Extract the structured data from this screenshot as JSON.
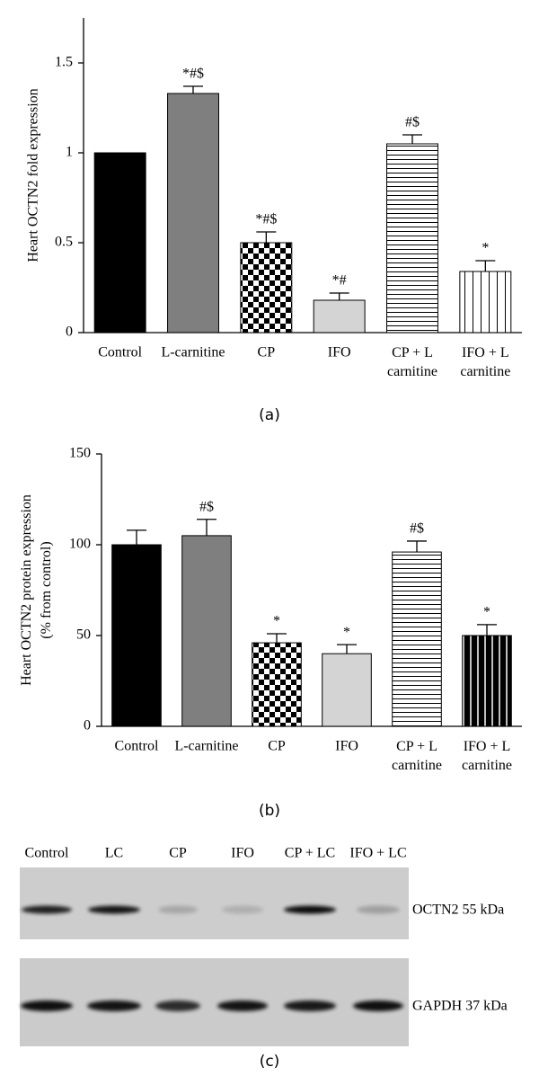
{
  "chart_data": [
    {
      "type": "bar",
      "ylabel": "Heart OCTN2 fold expression",
      "categories": [
        "Control",
        "L-carnitine",
        "CP",
        "IFO",
        "CP + L\ncarnitine",
        "IFO + L\ncarnitine"
      ],
      "values": [
        1.0,
        1.33,
        0.5,
        0.18,
        1.05,
        0.34
      ],
      "errors": [
        null,
        0.04,
        0.06,
        0.04,
        0.05,
        0.06
      ],
      "annotations": [
        null,
        "*#$",
        "*#$",
        "*#",
        "#$",
        "*"
      ],
      "fills": [
        "#000000",
        "#7f7f7f",
        "checker",
        "#d4d4d4",
        "hlines",
        "vlines"
      ],
      "ylim": [
        0,
        1.75
      ],
      "yticks": [
        0,
        0.5,
        1,
        1.5
      ],
      "caption": "(a)"
    },
    {
      "type": "bar",
      "ylabel": "Heart OCTN2 protein expression\n(% from control)",
      "categories": [
        "Control",
        "L-carnitine",
        "CP",
        "IFO",
        "CP + L\ncarnitine",
        "IFO + L\ncarnitine"
      ],
      "values": [
        100,
        105,
        46,
        40,
        96,
        50
      ],
      "errors": [
        8,
        9,
        5,
        5,
        6,
        6
      ],
      "annotations": [
        null,
        "#$",
        "*",
        "*",
        "#$",
        "*"
      ],
      "fills": [
        "#000000",
        "#7f7f7f",
        "checker",
        "#d4d4d4",
        "hlines",
        "vlines-dark"
      ],
      "ylim": [
        0,
        150
      ],
      "yticks": [
        0,
        50,
        100,
        150
      ],
      "caption": "(b)"
    }
  ],
  "blot": {
    "lanes": [
      "Control",
      "LC",
      "CP",
      "IFO",
      "CP + LC",
      "IFO + LC"
    ],
    "rows": [
      "OCTN2 55 kDa",
      "GAPDH 37 kDa"
    ],
    "caption": "(c)"
  }
}
